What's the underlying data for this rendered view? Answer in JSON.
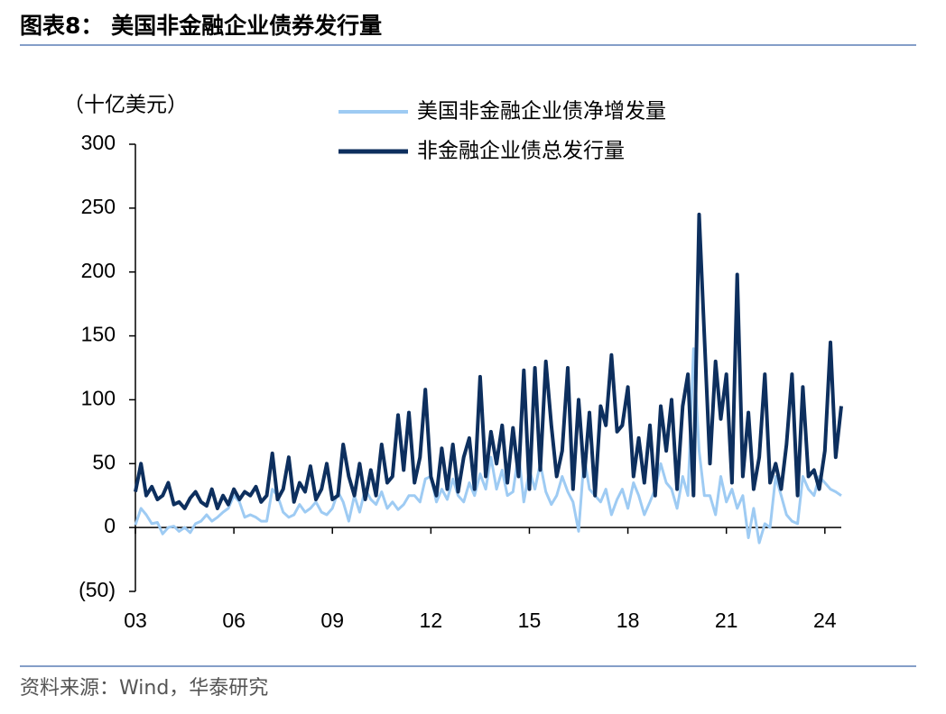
{
  "chart_data": {
    "type": "line",
    "title": "图表8： 美国非金融企业债券发行量",
    "y_label": "（十亿美元）",
    "source": "资料来源：Wind，华泰研究",
    "legend": "top",
    "x": [
      2003,
      2003.17,
      2003.33,
      2003.5,
      2003.67,
      2003.83,
      2004,
      2004.17,
      2004.33,
      2004.5,
      2004.67,
      2004.83,
      2005,
      2005.17,
      2005.33,
      2005.5,
      2005.67,
      2005.83,
      2006,
      2006.17,
      2006.33,
      2006.5,
      2006.67,
      2006.83,
      2007,
      2007.17,
      2007.33,
      2007.5,
      2007.67,
      2007.83,
      2008,
      2008.17,
      2008.33,
      2008.5,
      2008.67,
      2008.83,
      2009,
      2009.17,
      2009.33,
      2009.5,
      2009.67,
      2009.83,
      2010,
      2010.17,
      2010.33,
      2010.5,
      2010.67,
      2010.83,
      2011,
      2011.17,
      2011.33,
      2011.5,
      2011.67,
      2011.83,
      2012,
      2012.17,
      2012.33,
      2012.5,
      2012.67,
      2012.83,
      2013,
      2013.17,
      2013.33,
      2013.5,
      2013.67,
      2013.83,
      2014,
      2014.17,
      2014.33,
      2014.5,
      2014.67,
      2014.83,
      2015,
      2015.17,
      2015.33,
      2015.5,
      2015.67,
      2015.83,
      2016,
      2016.17,
      2016.33,
      2016.5,
      2016.67,
      2016.83,
      2017,
      2017.17,
      2017.33,
      2017.5,
      2017.67,
      2017.83,
      2018,
      2018.17,
      2018.33,
      2018.5,
      2018.67,
      2018.83,
      2019,
      2019.17,
      2019.33,
      2019.5,
      2019.67,
      2019.83,
      2020,
      2020.17,
      2020.33,
      2020.5,
      2020.67,
      2020.83,
      2021,
      2021.17,
      2021.33,
      2021.5,
      2021.67,
      2021.83,
      2022,
      2022.17,
      2022.33,
      2022.5,
      2022.67,
      2022.83,
      2023,
      2023.17,
      2023.33,
      2023.5,
      2023.67,
      2023.83,
      2024,
      2024.17,
      2024.33,
      2024.5
    ],
    "series": [
      {
        "name": "美国非金融企业债净增发量",
        "color": "#9ecbf3",
        "width": 3,
        "values": [
          2,
          15,
          10,
          3,
          4,
          -5,
          0,
          1,
          -3,
          0,
          -4,
          3,
          5,
          10,
          5,
          8,
          12,
          15,
          25,
          20,
          8,
          10,
          8,
          5,
          5,
          30,
          25,
          12,
          8,
          10,
          18,
          12,
          15,
          20,
          12,
          10,
          15,
          28,
          20,
          5,
          25,
          12,
          30,
          22,
          18,
          28,
          15,
          20,
          14,
          18,
          25,
          25,
          20,
          38,
          40,
          20,
          30,
          22,
          38,
          25,
          20,
          35,
          25,
          42,
          30,
          55,
          30,
          45,
          25,
          28,
          58,
          20,
          45,
          30,
          50,
          28,
          18,
          25,
          40,
          28,
          20,
          -3,
          55,
          30,
          25,
          20,
          30,
          10,
          22,
          30,
          15,
          35,
          25,
          10,
          20,
          30,
          50,
          35,
          30,
          15,
          40,
          25,
          140,
          60,
          25,
          25,
          10,
          40,
          20,
          30,
          15,
          25,
          -8,
          15,
          -12,
          3,
          0,
          40,
          25,
          10,
          5,
          3,
          40,
          30,
          25,
          40,
          35,
          30,
          28,
          25
        ]
      },
      {
        "name": "非金融企业债总发行量",
        "color": "#0d2f5e",
        "width": 4,
        "values": [
          28,
          50,
          25,
          32,
          22,
          25,
          35,
          18,
          20,
          15,
          23,
          28,
          20,
          17,
          30,
          15,
          25,
          18,
          30,
          22,
          28,
          25,
          32,
          20,
          25,
          58,
          22,
          30,
          55,
          20,
          35,
          28,
          48,
          22,
          30,
          50,
          22,
          25,
          65,
          40,
          25,
          50,
          22,
          45,
          25,
          65,
          35,
          40,
          88,
          45,
          90,
          35,
          55,
          108,
          40,
          25,
          62,
          30,
          65,
          28,
          55,
          70,
          30,
          118,
          40,
          75,
          50,
          80,
          35,
          78,
          40,
          123,
          30,
          125,
          45,
          130,
          80,
          40,
          60,
          125,
          30,
          100,
          40,
          90,
          25,
          95,
          80,
          135,
          75,
          80,
          110,
          40,
          70,
          35,
          80,
          25,
          95,
          60,
          100,
          30,
          95,
          120,
          25,
          245,
          150,
          50,
          130,
          85,
          120,
          35,
          198,
          40,
          90,
          30,
          55,
          120,
          35,
          50,
          30,
          65,
          120,
          25,
          110,
          40,
          45,
          30,
          60,
          145,
          55,
          95
        ]
      }
    ],
    "xlim": [
      2003,
      2024.5
    ],
    "xticks": [
      {
        "value": 2003,
        "label": "03"
      },
      {
        "value": 2006,
        "label": "06"
      },
      {
        "value": 2009,
        "label": "09"
      },
      {
        "value": 2012,
        "label": "12"
      },
      {
        "value": 2015,
        "label": "15"
      },
      {
        "value": 2018,
        "label": "18"
      },
      {
        "value": 2021,
        "label": "21"
      },
      {
        "value": 2024,
        "label": "24"
      }
    ],
    "ylim": [
      -50,
      300
    ],
    "yticks": [
      {
        "value": -50,
        "label": "(50)"
      },
      0,
      50,
      100,
      150,
      200,
      250,
      300
    ]
  }
}
